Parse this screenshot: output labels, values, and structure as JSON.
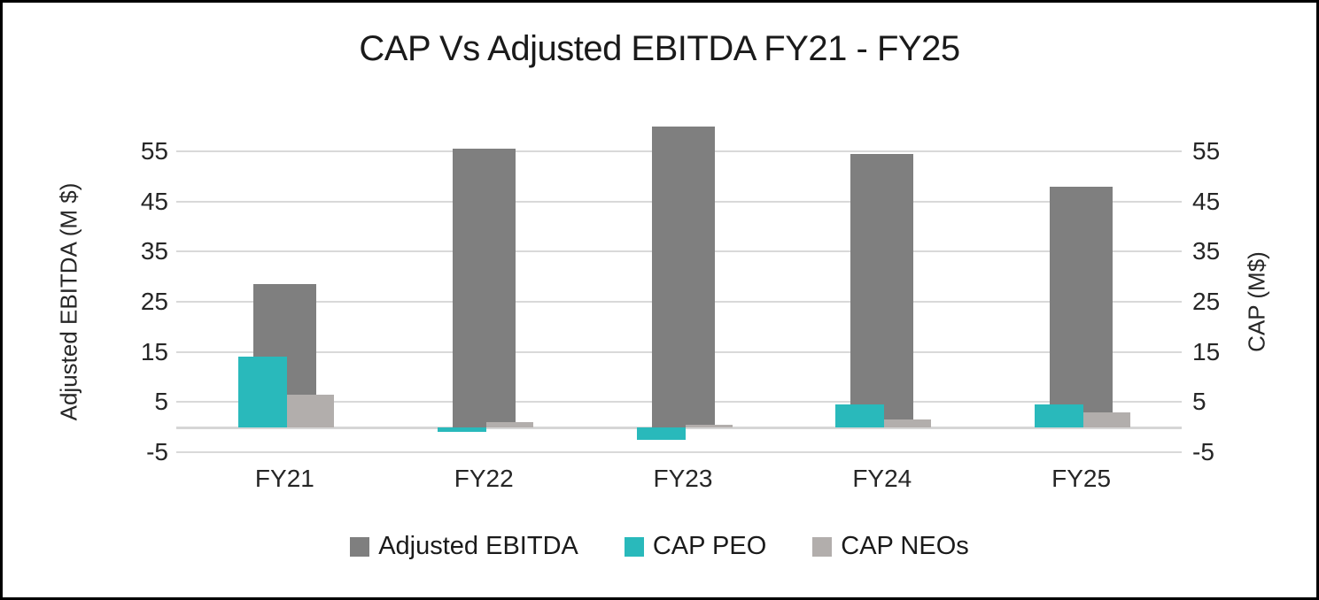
{
  "chart_data": {
    "type": "bar",
    "title": "CAP Vs Adjusted EBITDA FY21 - FY25",
    "categories": [
      "FY21",
      "FY22",
      "FY23",
      "FY24",
      "FY25"
    ],
    "series": [
      {
        "name": "Adjusted EBITDA",
        "axis": "left",
        "color": "#7F7F7F",
        "values": [
          28.5,
          55.5,
          60,
          54.5,
          48
        ]
      },
      {
        "name": "CAP PEO",
        "axis": "right",
        "color": "#29B9BB",
        "values": [
          14,
          -1,
          -2.5,
          4.5,
          4.5
        ]
      },
      {
        "name": "CAP NEOs",
        "axis": "right",
        "color": "#B2AEAC",
        "values": [
          6.5,
          1,
          0.5,
          1.5,
          3
        ]
      }
    ],
    "axes": {
      "left": {
        "label": "Adjusted EBITDA (M $)",
        "ticks": [
          55,
          45,
          35,
          25,
          15,
          5,
          -5
        ]
      },
      "right": {
        "label": "CAP (M$)",
        "ticks": [
          55,
          45,
          35,
          25,
          15,
          5,
          -5
        ]
      }
    },
    "ylim": [
      -5,
      62
    ],
    "grid": true,
    "gridline_color": "#D9D9D9",
    "text_color": "#262626",
    "frame_border_color": "#000000",
    "legend_position": "bottom"
  }
}
